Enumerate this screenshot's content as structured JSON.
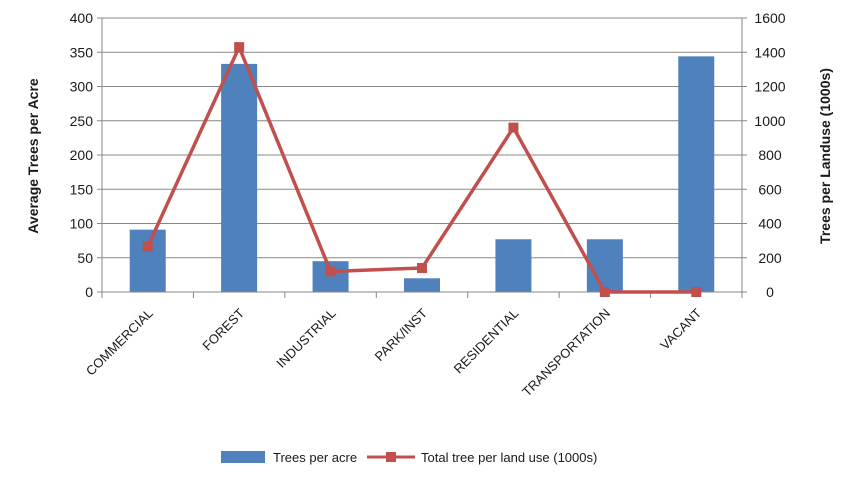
{
  "chart_data": {
    "type": "bar",
    "title": "",
    "categories": [
      "COMMERCIAL",
      "FOREST",
      "INDUSTRIAL",
      "PARK/INST",
      "RESIDENTIAL",
      "TRANSPORTATION",
      "VACANT"
    ],
    "series": [
      {
        "name": "Trees per acre",
        "type": "bar",
        "axis": "left",
        "color": "#4f81bd",
        "values": [
          91,
          333,
          45,
          20,
          77,
          77,
          344
        ]
      },
      {
        "name": "Total tree per land use (1000s)",
        "type": "line",
        "axis": "right",
        "color": "#c0504d",
        "marker": "square",
        "values": [
          265,
          1430,
          120,
          140,
          960,
          0,
          0
        ]
      }
    ],
    "y_left": {
      "label": "Average Trees per Acre",
      "lim": [
        0,
        400
      ],
      "ticks": [
        "0",
        "50",
        "100",
        "150",
        "200",
        "250",
        "300",
        "350",
        "400"
      ]
    },
    "y_right": {
      "label": "Trees per Landuse (1000s)",
      "lim": [
        0,
        1600
      ],
      "ticks": [
        "0",
        "200",
        "400",
        "600",
        "800",
        "1000",
        "1200",
        "1400",
        "1600"
      ]
    },
    "grid": true,
    "legend_position": "bottom"
  }
}
